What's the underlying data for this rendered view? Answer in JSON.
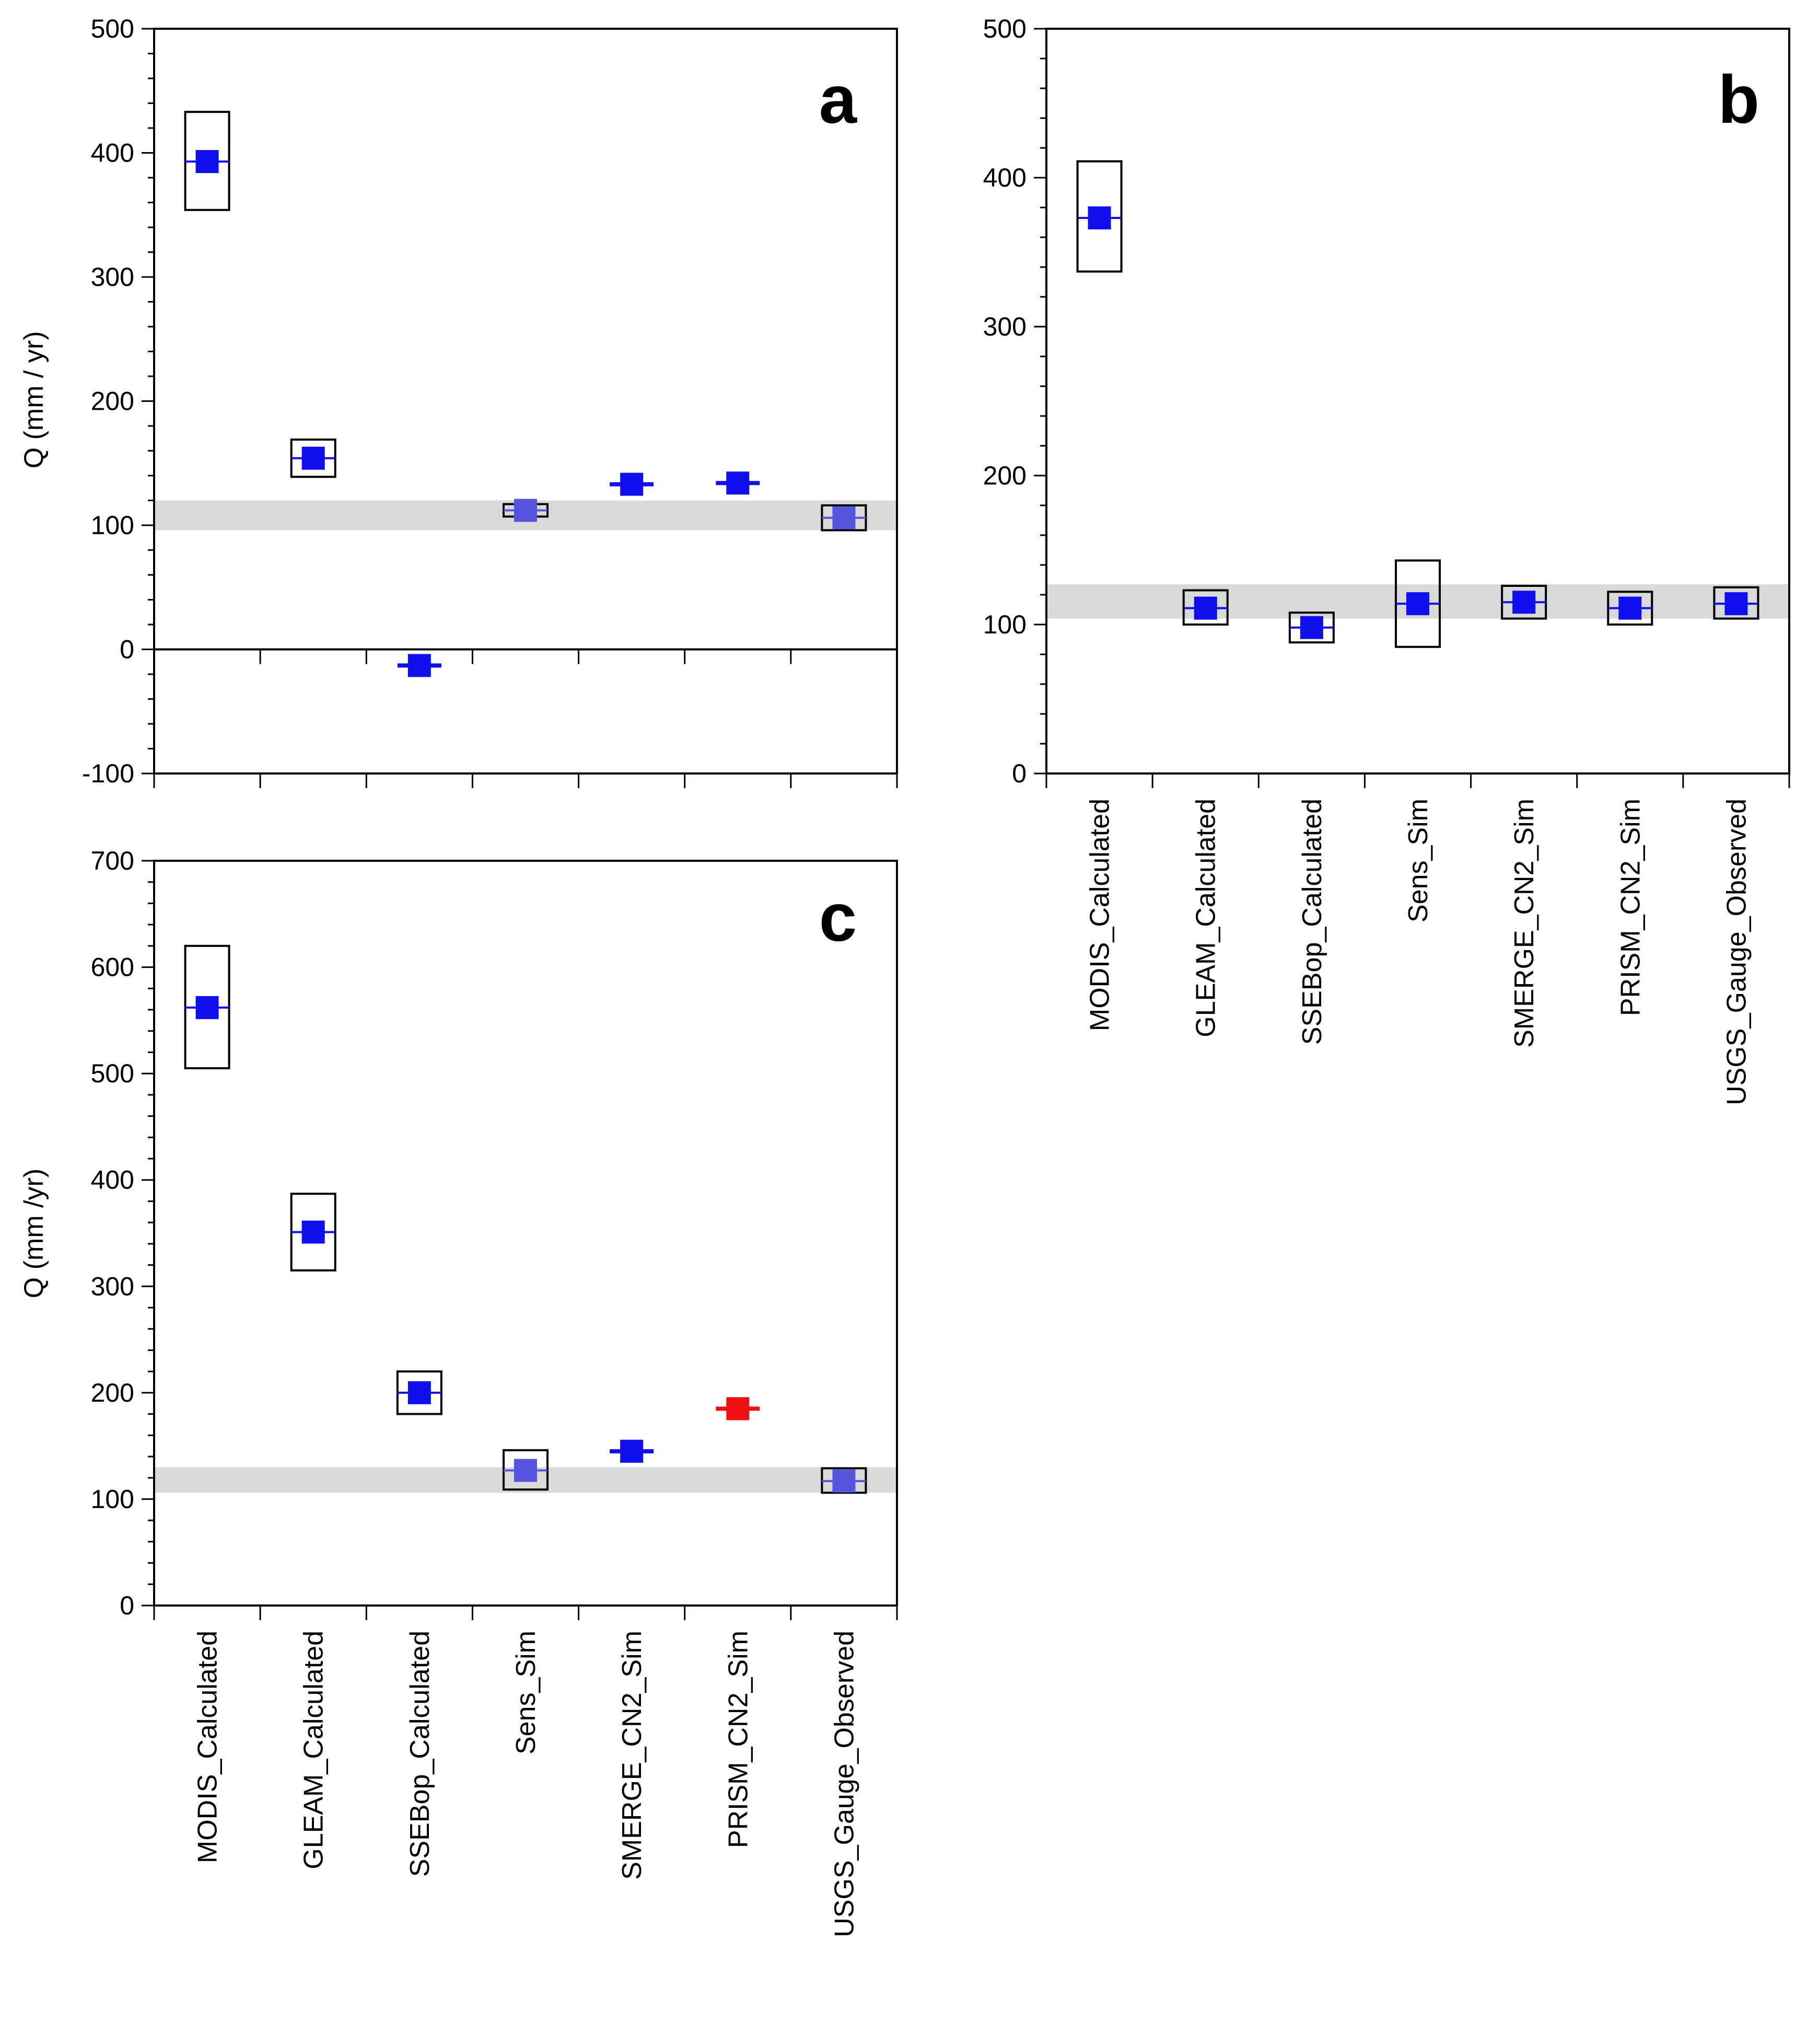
{
  "categories": [
    "MODIS_Calculated",
    "GLEAM_Calculated",
    "SSEBop_Calculated",
    "Sens_Sim",
    "SMERGE_CN2_Sim",
    "PRISM_CN2_Sim",
    "USGS_Gauge_Observed"
  ],
  "colors": {
    "point": "#1010ee",
    "point_light": "#5555dd",
    "point_red": "#ee1111",
    "band": "#d9d9d9",
    "box": "#000000"
  },
  "chart_data": [
    {
      "type": "scatter",
      "panel": "a",
      "ylabel": "Q (mm / yr)",
      "ylim": [
        -100,
        500
      ],
      "yticks": [
        -100,
        0,
        100,
        200,
        300,
        400,
        500
      ],
      "zero_line": true,
      "band": [
        96,
        120
      ],
      "points": [
        {
          "category": "MODIS_Calculated",
          "value": 393,
          "range": [
            354,
            433
          ],
          "color": "point"
        },
        {
          "category": "GLEAM_Calculated",
          "value": 154,
          "range": [
            139,
            169
          ],
          "color": "point"
        },
        {
          "category": "SSEBop_Calculated",
          "value": -13,
          "range": [
            -14,
            -12
          ],
          "color": "point"
        },
        {
          "category": "Sens_Sim",
          "value": 112,
          "range": [
            107,
            117
          ],
          "color": "point_light"
        },
        {
          "category": "SMERGE_CN2_Sim",
          "value": 133,
          "range": [
            132,
            134
          ],
          "color": "point"
        },
        {
          "category": "PRISM_CN2_Sim",
          "value": 134,
          "range": [
            134,
            134
          ],
          "color": "point"
        },
        {
          "category": "USGS_Gauge_Observed",
          "value": 106,
          "range": [
            96,
            116
          ],
          "color": "point_light"
        }
      ]
    },
    {
      "type": "scatter",
      "panel": "b",
      "ylabel": "",
      "ylim": [
        0,
        500
      ],
      "yticks": [
        0,
        100,
        200,
        300,
        400,
        500
      ],
      "zero_line": false,
      "band": [
        104,
        127
      ],
      "points": [
        {
          "category": "MODIS_Calculated",
          "value": 373,
          "range": [
            337,
            411
          ],
          "color": "point"
        },
        {
          "category": "GLEAM_Calculated",
          "value": 111,
          "range": [
            100,
            123
          ],
          "color": "point"
        },
        {
          "category": "SSEBop_Calculated",
          "value": 98,
          "range": [
            88,
            108
          ],
          "color": "point"
        },
        {
          "category": "Sens_Sim",
          "value": 114,
          "range": [
            85,
            143
          ],
          "color": "point"
        },
        {
          "category": "SMERGE_CN2_Sim",
          "value": 115,
          "range": [
            104,
            126
          ],
          "color": "point"
        },
        {
          "category": "PRISM_CN2_Sim",
          "value": 111,
          "range": [
            100,
            122
          ],
          "color": "point"
        },
        {
          "category": "USGS_Gauge_Observed",
          "value": 114,
          "range": [
            104,
            125
          ],
          "color": "point"
        }
      ]
    },
    {
      "type": "scatter",
      "panel": "c",
      "ylabel": "Q (mm /yr)",
      "ylim": [
        0,
        700
      ],
      "yticks": [
        0,
        100,
        200,
        300,
        400,
        500,
        600,
        700
      ],
      "zero_line": false,
      "band": [
        106,
        130
      ],
      "points": [
        {
          "category": "MODIS_Calculated",
          "value": 562,
          "range": [
            505,
            620
          ],
          "color": "point"
        },
        {
          "category": "GLEAM_Calculated",
          "value": 351,
          "range": [
            315,
            387
          ],
          "color": "point"
        },
        {
          "category": "SSEBop_Calculated",
          "value": 200,
          "range": [
            180,
            220
          ],
          "color": "point"
        },
        {
          "category": "Sens_Sim",
          "value": 127,
          "range": [
            109,
            146
          ],
          "color": "point_light"
        },
        {
          "category": "SMERGE_CN2_Sim",
          "value": 145,
          "range": [
            144,
            146
          ],
          "color": "point"
        },
        {
          "category": "PRISM_CN2_Sim",
          "value": 185,
          "range": [
            185,
            185
          ],
          "color": "point_red"
        },
        {
          "category": "USGS_Gauge_Observed",
          "value": 117,
          "range": [
            106,
            129
          ],
          "color": "point_light"
        }
      ]
    }
  ]
}
